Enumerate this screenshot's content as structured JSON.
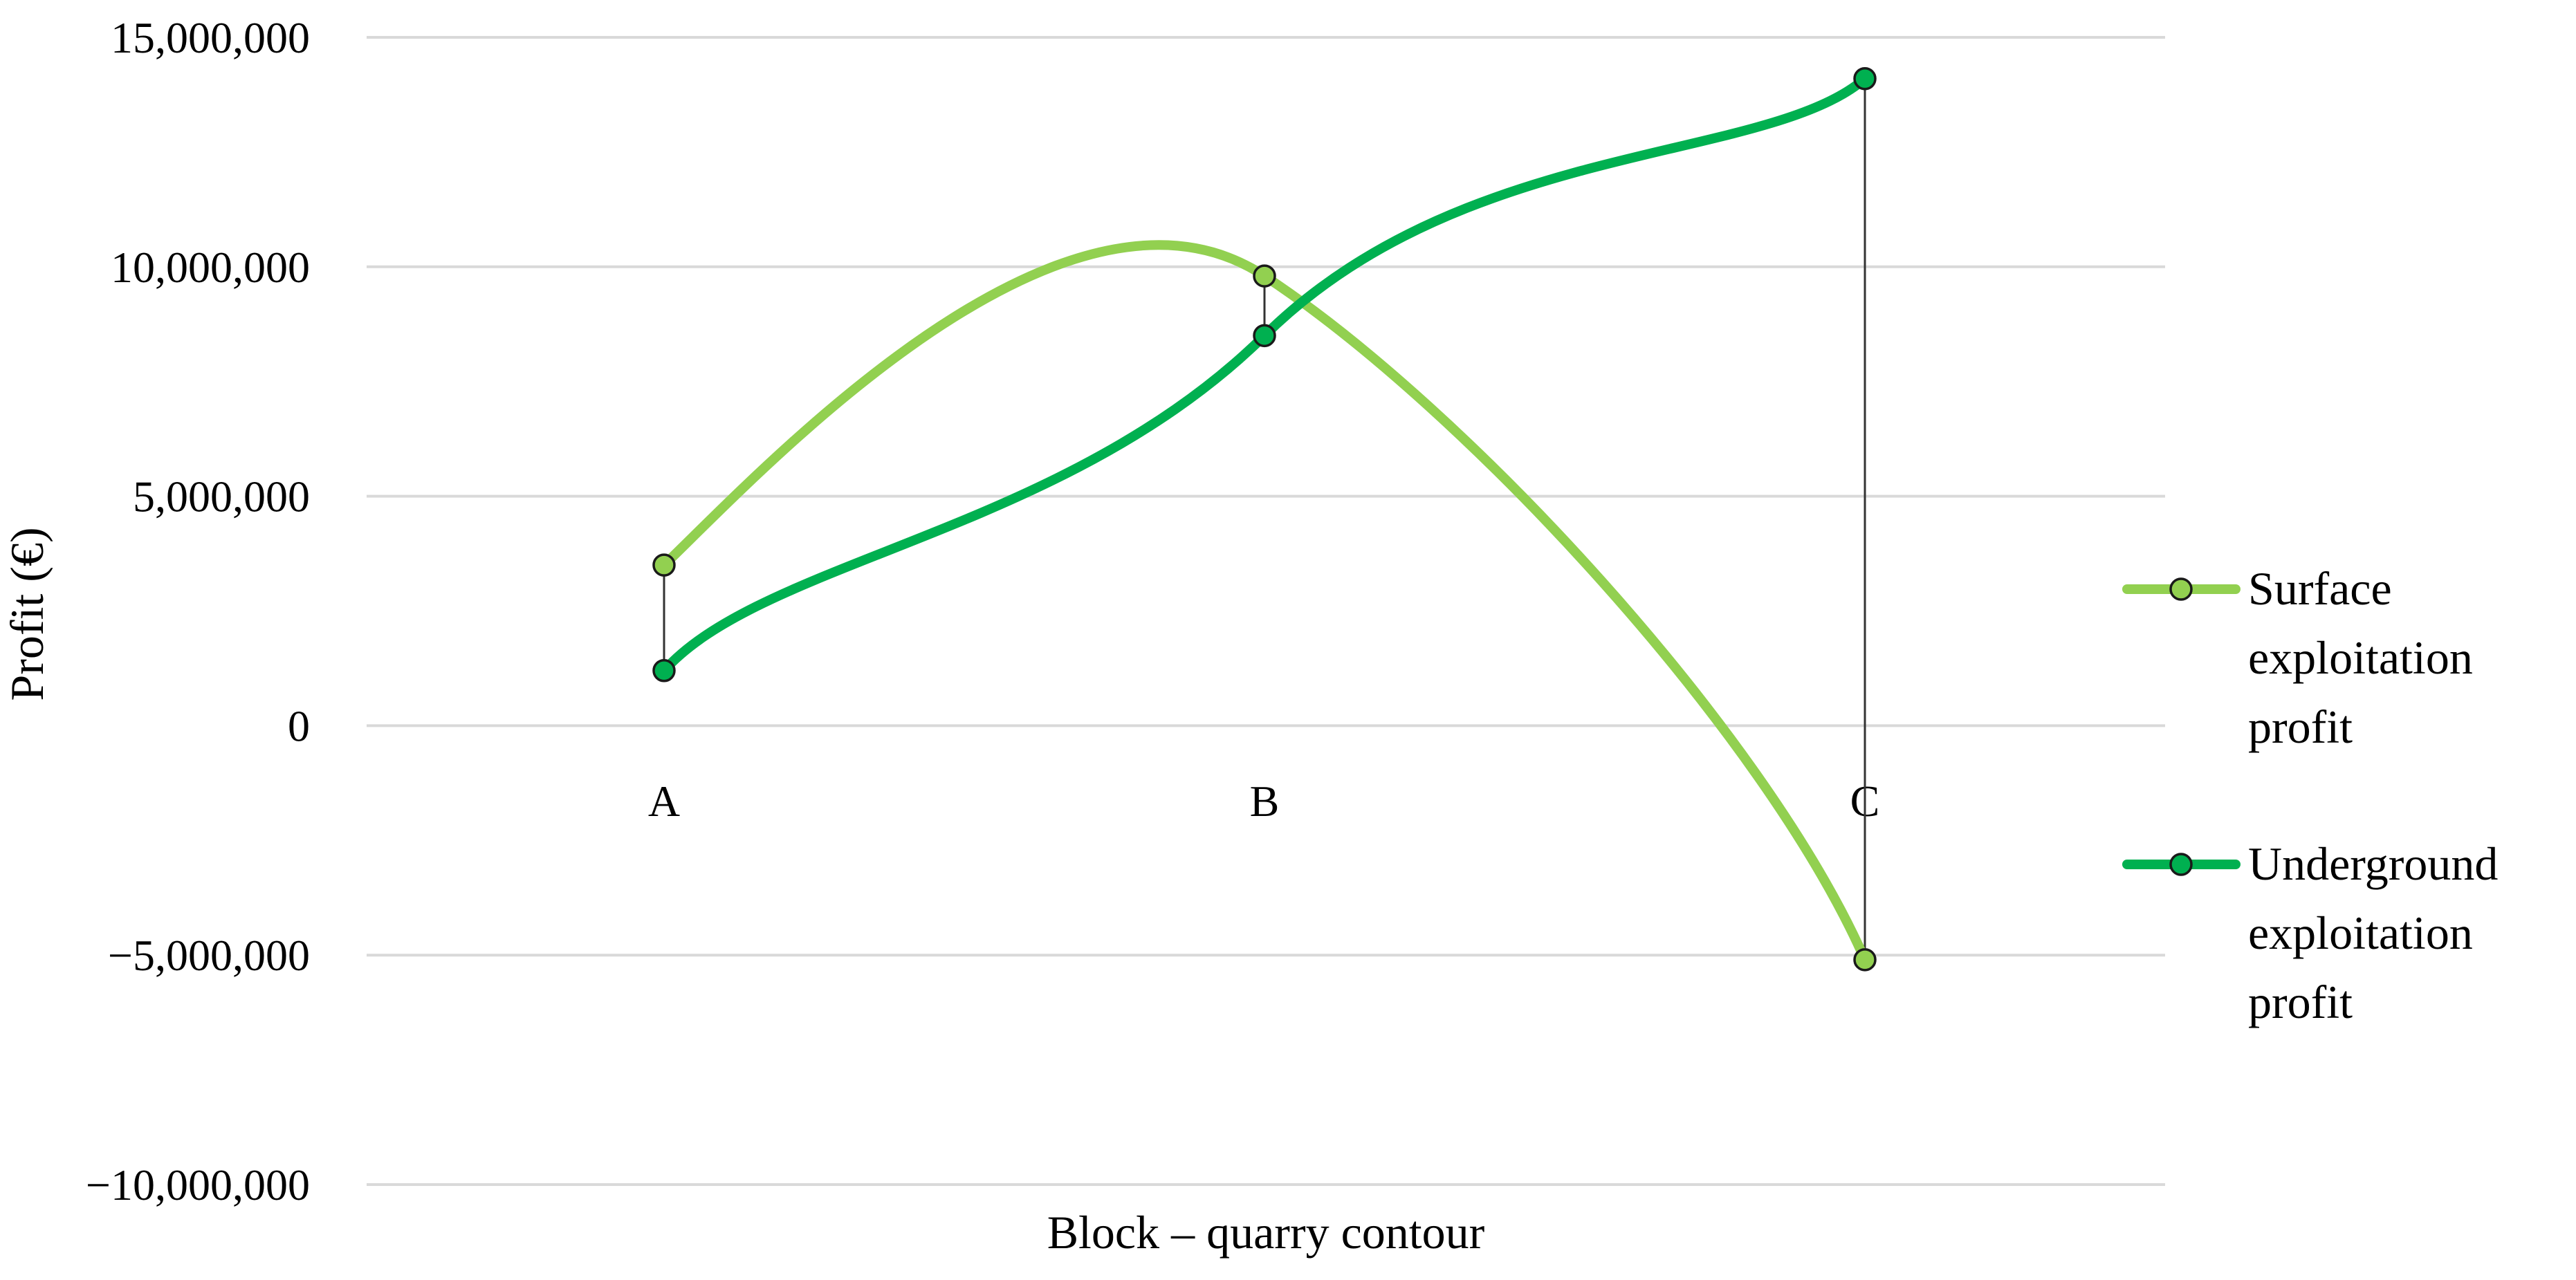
{
  "chart_data": {
    "type": "line",
    "title": "",
    "xlabel": "Block – quarry contour",
    "ylabel": "Profit (€)",
    "categories": [
      "A",
      "B",
      "C"
    ],
    "ylim": [
      -10000000,
      15000000
    ],
    "yticks": [
      15000000,
      10000000,
      5000000,
      0,
      -5000000,
      -10000000
    ],
    "ytick_labels": [
      "15,000,000",
      "10,000,000",
      "5,000,000",
      "0",
      "−5,000,000",
      "−10,000,000"
    ],
    "grid": true,
    "legend_position": "right",
    "smoothed": true,
    "drop_lines": true,
    "series": [
      {
        "name": "Surface exploitation profit",
        "legend_lines": [
          "Surface",
          "exploitation",
          "profit"
        ],
        "values": [
          3500000,
          9800000,
          -5100000
        ],
        "color": "#92d050"
      },
      {
        "name": "Underground exploitation profit",
        "legend_lines": [
          "Underground",
          "exploitation",
          "profit"
        ],
        "values": [
          1200000,
          8500000,
          14100000
        ],
        "color": "#00b050"
      }
    ]
  }
}
